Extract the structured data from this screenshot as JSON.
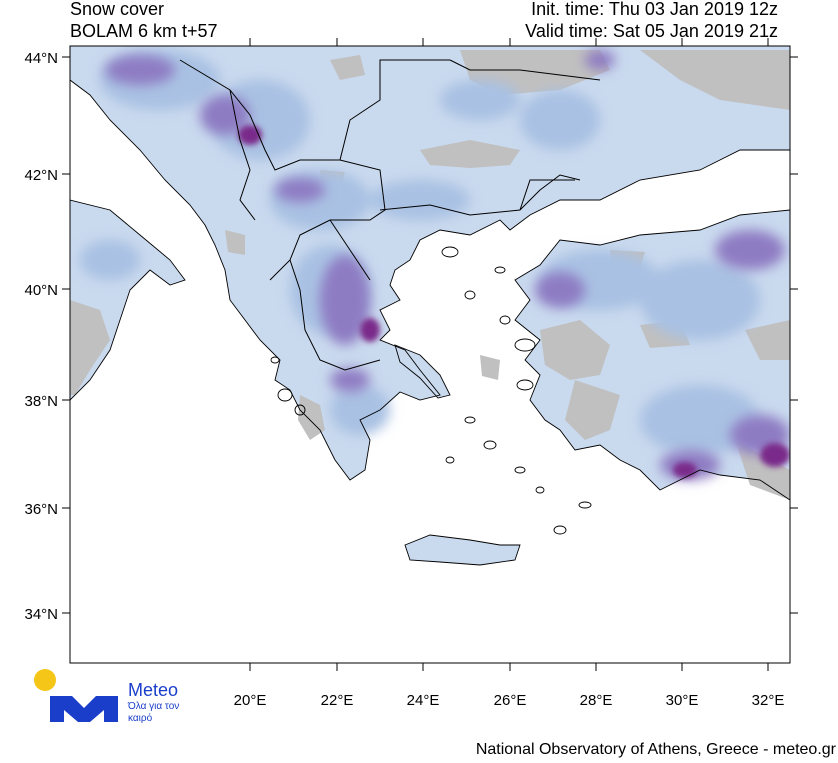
{
  "header": {
    "line1": "Snow cover",
    "line2": "BOLAM 6 km t+57",
    "init_time": "Init. time: Thu 03 Jan 2019 12z",
    "valid_time": "Valid time: Sat 05 Jan 2019 21z"
  },
  "map": {
    "lat_ticks": [
      "44°N",
      "42°N",
      "40°N",
      "38°N",
      "36°N",
      "34°N"
    ],
    "lon_ticks": [
      "20°E",
      "22°E",
      "24°E",
      "26°E",
      "28°E",
      "30°E",
      "32°E"
    ],
    "colors": {
      "sea": "#ffffff",
      "land_no_snow": "#c0c0c0",
      "snow_light": "#dce8f4",
      "snow_medium": "#a9c1e3",
      "snow_heavy": "#8e7cc3",
      "snow_max": "#7a2a8a",
      "border": "#000000"
    }
  },
  "logo": {
    "name": "Meteo",
    "tagline": "Όλα για τον καιρό",
    "sun_color": "#f5c518",
    "mark_color": "#1a3ec9"
  },
  "footer": {
    "credit": "National Observatory of Athens, Greece - meteo.gr"
  }
}
